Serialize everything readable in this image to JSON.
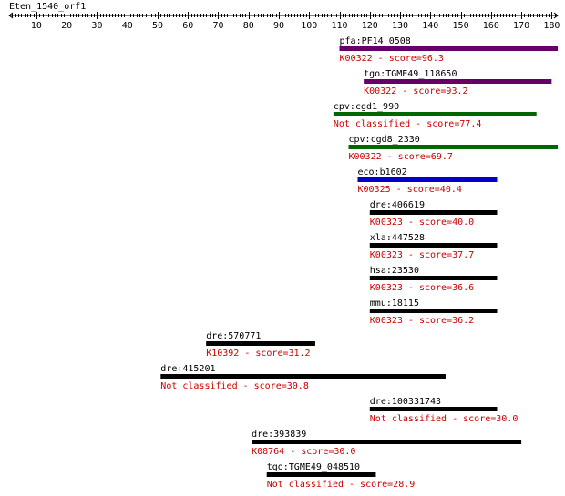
{
  "query": {
    "name": "Eten_1540_orf1",
    "axis_min": 1,
    "axis_max": 182
  },
  "axis": {
    "tick_labels": [
      "10",
      "20",
      "30",
      "40",
      "50",
      "60",
      "70",
      "80",
      "90",
      "100",
      "110",
      "120",
      "130",
      "140",
      "150",
      "160",
      "170",
      "180"
    ]
  },
  "colors": {
    "purple": "#660066",
    "green": "#006600",
    "blue": "#0000cc",
    "black": "#000000",
    "info_text": "#cc0000"
  },
  "hits": [
    {
      "label": "pfa:PF14_0508",
      "info": "K00322 - score=96.3",
      "start": 110,
      "end": 182,
      "color": "#660066"
    },
    {
      "label": "tgo:TGME49_118650",
      "info": "K00322 - score=93.2",
      "start": 118,
      "end": 180,
      "color": "#660066"
    },
    {
      "label": "cpv:cgd1_990",
      "info": "Not classified - score=77.4",
      "start": 108,
      "end": 175,
      "color": "#006600"
    },
    {
      "label": "cpv:cgd8_2330",
      "info": "K00322 - score=69.7",
      "start": 113,
      "end": 182,
      "color": "#006600"
    },
    {
      "label": "eco:b1602",
      "info": "K00325 - score=40.4",
      "start": 116,
      "end": 162,
      "color": "#0000cc"
    },
    {
      "label": "dre:406619",
      "info": "K00323 - score=40.0",
      "start": 120,
      "end": 162,
      "color": "#000000"
    },
    {
      "label": "xla:447528",
      "info": "K00323 - score=37.7",
      "start": 120,
      "end": 162,
      "color": "#000000"
    },
    {
      "label": "hsa:23530",
      "info": "K00323 - score=36.6",
      "start": 120,
      "end": 162,
      "color": "#000000"
    },
    {
      "label": "mmu:18115",
      "info": "K00323 - score=36.2",
      "start": 120,
      "end": 162,
      "color": "#000000"
    },
    {
      "label": "dre:570771",
      "info": "K10392 - score=31.2",
      "start": 66,
      "end": 102,
      "color": "#000000"
    },
    {
      "label": "dre:415201",
      "info": "Not classified - score=30.8",
      "start": 51,
      "end": 145,
      "color": "#000000"
    },
    {
      "label": "dre:100331743",
      "info": "Not classified - score=30.0",
      "start": 120,
      "end": 162,
      "color": "#000000"
    },
    {
      "label": "dre:393839",
      "info": "K08764 - score=30.0",
      "start": 81,
      "end": 170,
      "color": "#000000"
    },
    {
      "label": "tgo:TGME49_048510",
      "info": "Not classified - score=28.9",
      "start": 86,
      "end": 122,
      "color": "#000000"
    }
  ]
}
